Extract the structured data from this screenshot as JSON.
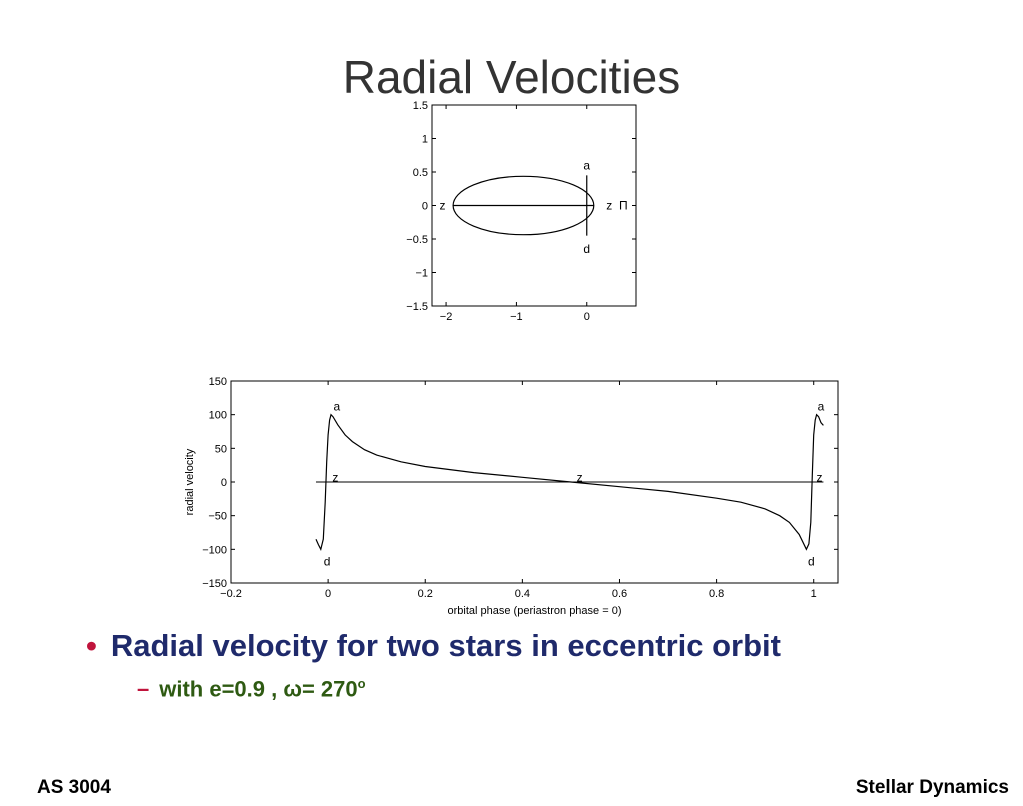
{
  "slide": {
    "title": "Radial Velocities",
    "bullet": "Radial velocity for two stars in eccentric orbit",
    "sub_bullet_prefix": "with e=0.9 , ",
    "omega_symbol": "ω",
    "sub_bullet_value": "= 270",
    "degree_mark": "o",
    "footer_left": "AS 3004",
    "footer_right": "Stellar Dynamics"
  },
  "chart_data": [
    {
      "type": "line",
      "name": "orbit",
      "xlim": [
        -2.2,
        0.7
      ],
      "ylim": [
        -1.5,
        1.5
      ],
      "x_ticks": [
        -2,
        -1,
        0
      ],
      "y_ticks": [
        1.5,
        1,
        0.5,
        0,
        -0.5,
        -1,
        -1.5
      ],
      "y_tick_labels": [
        "1.5",
        "1",
        "0.5",
        "0",
        "−0.5",
        "−1",
        "−1.5"
      ],
      "x_tick_labels": [
        "−2",
        "−1",
        "0"
      ],
      "ellipse": {
        "center_x": -0.9,
        "center_y": 0,
        "semi_major": 1.0,
        "semi_minor": 0.436
      },
      "major_axis_line": {
        "x": [
          -1.9,
          0.1
        ],
        "y": [
          0,
          0
        ]
      },
      "sightline": {
        "x": 0.0,
        "y": [
          -0.45,
          0.45
        ]
      },
      "annotations": [
        {
          "text": "a",
          "x": 0.0,
          "y": 0.6
        },
        {
          "text": "d",
          "x": 0.0,
          "y": -0.65
        },
        {
          "text": "z",
          "x": -2.05,
          "y": 0
        },
        {
          "text": "z",
          "x": 0.32,
          "y": 0
        },
        {
          "text": "Π",
          "x": 0.52,
          "y": 0
        }
      ]
    },
    {
      "type": "line",
      "name": "radial-velocity",
      "xlabel": "orbital phase (periastron phase = 0)",
      "ylabel": "radial velocity",
      "xlim": [
        -0.2,
        1.05
      ],
      "ylim": [
        -150,
        150
      ],
      "x_ticks": [
        -0.2,
        0,
        0.2,
        0.4,
        0.6,
        0.8,
        1
      ],
      "x_tick_labels": [
        "−0.2",
        "0",
        "0.2",
        "0.4",
        "0.6",
        "0.8",
        "1"
      ],
      "y_ticks": [
        150,
        100,
        50,
        0,
        -50,
        -100,
        -150
      ],
      "y_tick_labels": [
        "150",
        "100",
        "50",
        "0",
        "−50",
        "−100",
        "−150"
      ],
      "series": [
        {
          "x": [
            -0.025,
            -0.02,
            -0.015,
            -0.01,
            -0.006,
            -0.003,
            0.0,
            0.003,
            0.006,
            0.01,
            0.02,
            0.035,
            0.05,
            0.075,
            0.1,
            0.15,
            0.2,
            0.3,
            0.4,
            0.5,
            0.6,
            0.7,
            0.8,
            0.85,
            0.9,
            0.93,
            0.95,
            0.97,
            0.985,
            0.99,
            0.994,
            0.997,
            1.0,
            1.003,
            1.006,
            1.01,
            1.015,
            1.02
          ],
          "y": [
            -85,
            -93,
            -100,
            -85,
            -30,
            30,
            70,
            92,
            100,
            97,
            85,
            70,
            60,
            48,
            40,
            30,
            23,
            14,
            7,
            0,
            -7,
            -14,
            -24,
            -30,
            -40,
            -50,
            -60,
            -78,
            -100,
            -92,
            -60,
            10,
            70,
            92,
            100,
            97,
            88,
            84
          ]
        }
      ],
      "zero_line": {
        "x": [
          -0.025,
          1.02
        ],
        "y": [
          0,
          0
        ]
      },
      "annotations": [
        {
          "text": "a",
          "x": 0.018,
          "y": 112
        },
        {
          "text": "z",
          "x": 0.015,
          "y": 7
        },
        {
          "text": "d",
          "x": -0.002,
          "y": -118
        },
        {
          "text": "z",
          "x": 0.518,
          "y": 7
        },
        {
          "text": "d",
          "x": 0.995,
          "y": -118
        },
        {
          "text": "z",
          "x": 1.012,
          "y": 7
        },
        {
          "text": "a",
          "x": 1.015,
          "y": 112
        }
      ]
    }
  ]
}
